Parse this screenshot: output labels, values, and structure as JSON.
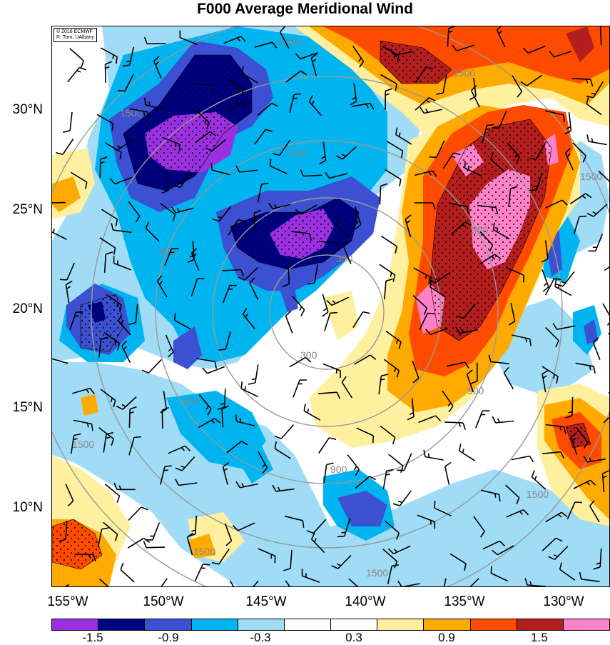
{
  "title": "F000 Average Meridional Wind",
  "credit": {
    "line1": "© 2016 ECMWF",
    "line2": "R. Torn, UAlbany"
  },
  "lat_labels": [
    "30°N",
    "25°N",
    "20°N",
    "15°N",
    "10°N"
  ],
  "lon_labels": [
    "155°W",
    "150°W",
    "145°W",
    "140°W",
    "135°W",
    "130°W"
  ],
  "contour_labels": [
    "1500",
    "1500",
    "1500",
    "900",
    "900",
    "900",
    "900",
    "900",
    "300",
    "300",
    "1500",
    "1500",
    "1500",
    "900",
    "1500",
    "1500"
  ],
  "colorbar": {
    "colors": [
      "#9b30e0",
      "#000082",
      "#3c50d2",
      "#00b4f0",
      "#a0dcf5",
      "#ffffff",
      "#ffffff",
      "#fff0a0",
      "#ffaa00",
      "#ff4b00",
      "#b41e1e",
      "#ff82c8"
    ],
    "labels": [
      "-1.5",
      "-0.9",
      "-0.3",
      "0.3",
      "0.9",
      "1.5"
    ]
  },
  "palette": {
    "purple": "#9b30e0",
    "navy": "#000082",
    "blue": "#3c50d2",
    "cyan": "#00b4f0",
    "lightblue": "#a0dcf5",
    "yellow": "#fff0a0",
    "orange": "#ffaa00",
    "redorange": "#ff4b00",
    "darkred": "#b41e1e",
    "pink": "#ff82c8",
    "contour": "#999999"
  }
}
